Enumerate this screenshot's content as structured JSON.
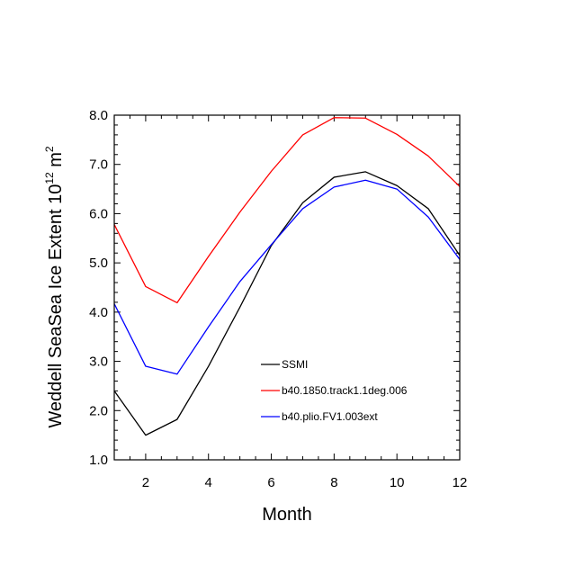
{
  "chart_data": {
    "type": "line",
    "title": "",
    "xlabel": "Month",
    "ylabel_main": "Weddell SeaSea Ice Extent 10",
    "ylabel_exp": "12",
    "ylabel_unit": " m",
    "ylabel_unit_exp": "2",
    "xlim": [
      1,
      12
    ],
    "ylim": [
      1.0,
      8.0
    ],
    "x_ticks": [
      2,
      4,
      6,
      8,
      10,
      12
    ],
    "x_tick_labels": [
      "2",
      "4",
      "6",
      "8",
      "10",
      "12"
    ],
    "y_ticks": [
      1.0,
      2.0,
      3.0,
      4.0,
      5.0,
      6.0,
      7.0,
      8.0
    ],
    "y_tick_labels": [
      "1.0",
      "2.0",
      "3.0",
      "4.0",
      "5.0",
      "6.0",
      "7.0",
      "8.0"
    ],
    "grid": false,
    "legend_position": "lower-middle",
    "x": [
      1,
      2,
      3,
      4,
      5,
      6,
      7,
      8,
      9,
      10,
      11,
      12
    ],
    "series": [
      {
        "name": "SSMI",
        "color": "#000000",
        "values": [
          2.4,
          1.5,
          1.82,
          2.9,
          4.1,
          5.35,
          6.22,
          6.74,
          6.85,
          6.57,
          6.1,
          5.15
        ]
      },
      {
        "name": "b40.1850.track1.1deg.006",
        "color": "#ff0000",
        "values": [
          5.78,
          4.52,
          4.19,
          5.13,
          6.03,
          6.86,
          7.6,
          7.95,
          7.94,
          7.61,
          7.17,
          6.55
        ]
      },
      {
        "name": "b40.plio.FV1.003ext",
        "color": "#0000ff",
        "values": [
          4.17,
          2.9,
          2.74,
          3.7,
          4.62,
          5.37,
          6.1,
          6.54,
          6.68,
          6.5,
          5.93,
          5.07
        ]
      }
    ]
  }
}
